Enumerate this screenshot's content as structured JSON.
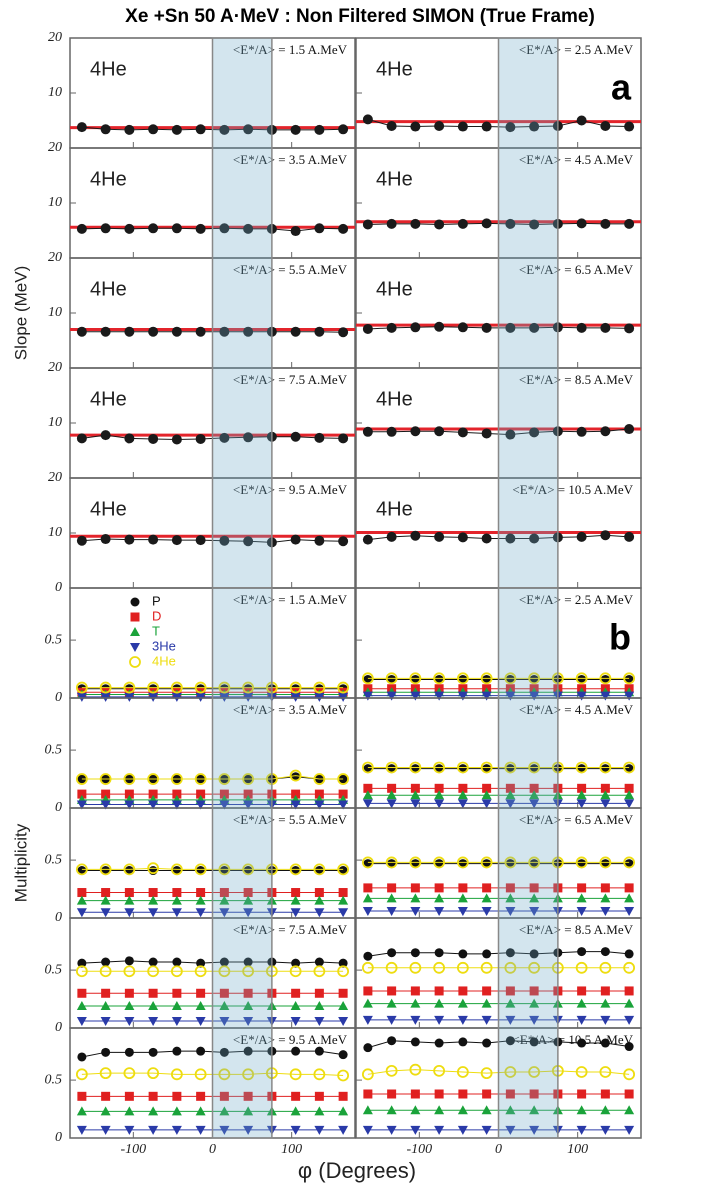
{
  "title": "Xe +Sn 50 A·MeV : Non Filtered SIMON (True Frame)",
  "xlabel": "φ (Degrees)",
  "chart_data": [
    {
      "type": "line",
      "label": "a",
      "ylabel": "Slope (MeV)",
      "x": [
        -165,
        -135,
        -105,
        -75,
        -45,
        -15,
        15,
        45,
        75,
        105,
        135,
        165
      ],
      "xlim": [
        -180,
        180
      ],
      "xticks": [
        -100,
        0,
        100
      ],
      "ylim": [
        0,
        20
      ],
      "yticks": [
        0,
        10,
        20
      ],
      "shade": [
        0,
        75
      ],
      "color": "#1a1a1a",
      "fit_color": "#e3242b",
      "panels": [
        {
          "annotation": "<E*/A> = 1.5 A.MeV",
          "name": "4He",
          "values": [
            3.8,
            3.4,
            3.3,
            3.4,
            3.3,
            3.4,
            3.3,
            3.4,
            3.3,
            3.3,
            3.3,
            3.4
          ],
          "fit": 3.7
        },
        {
          "annotation": "<E*/A> = 2.5 A.MeV",
          "name": "4He",
          "values": [
            5.2,
            4.0,
            3.9,
            4.0,
            3.9,
            3.9,
            3.8,
            3.9,
            4.0,
            5.0,
            4.0,
            3.9
          ],
          "fit": 4.8
        },
        {
          "annotation": "<E*/A> = 3.5 A.MeV",
          "name": "4He",
          "values": [
            5.3,
            5.4,
            5.3,
            5.4,
            5.4,
            5.3,
            5.4,
            5.3,
            5.3,
            4.9,
            5.4,
            5.3
          ],
          "fit": 5.6
        },
        {
          "annotation": "<E*/A> = 4.5 A.MeV",
          "name": "4He",
          "values": [
            6.1,
            6.2,
            6.2,
            6.1,
            6.2,
            6.3,
            6.2,
            6.1,
            6.2,
            6.3,
            6.2,
            6.2
          ],
          "fit": 6.6
        },
        {
          "annotation": "<E*/A> = 5.5 A.MeV",
          "name": "4He",
          "values": [
            6.6,
            6.6,
            6.6,
            6.6,
            6.6,
            6.6,
            6.6,
            6.6,
            6.6,
            6.6,
            6.6,
            6.5
          ],
          "fit": 7.0
        },
        {
          "annotation": "<E*/A> = 6.5 A.MeV",
          "name": "4He",
          "values": [
            7.1,
            7.3,
            7.4,
            7.5,
            7.4,
            7.3,
            7.3,
            7.3,
            7.4,
            7.3,
            7.3,
            7.2
          ],
          "fit": 7.8
        },
        {
          "annotation": "<E*/A> = 7.5 A.MeV",
          "name": "4He",
          "values": [
            7.2,
            7.8,
            7.2,
            7.1,
            7.0,
            7.1,
            7.3,
            7.4,
            7.5,
            7.5,
            7.3,
            7.2
          ],
          "fit": 7.8
        },
        {
          "annotation": "<E*/A> = 8.5 A.MeV",
          "name": "4He",
          "values": [
            8.4,
            8.4,
            8.5,
            8.5,
            8.3,
            8.1,
            7.9,
            8.3,
            8.5,
            8.4,
            8.5,
            8.9
          ],
          "fit": 8.9
        },
        {
          "annotation": "<E*/A> = 9.5 A.MeV",
          "name": "4He",
          "values": [
            8.6,
            8.9,
            8.8,
            8.8,
            8.7,
            8.7,
            8.6,
            8.5,
            8.3,
            8.8,
            8.6,
            8.5
          ],
          "fit": 9.4
        },
        {
          "annotation": "<E*/A> = 10.5 A.MeV",
          "name": "4He",
          "values": [
            8.8,
            9.3,
            9.5,
            9.3,
            9.2,
            9.0,
            9.0,
            9.0,
            9.2,
            9.3,
            9.6,
            9.3
          ],
          "fit": 10.1
        }
      ]
    },
    {
      "type": "line",
      "label": "b",
      "ylabel": "Multiplicity",
      "x": [
        -165,
        -135,
        -105,
        -75,
        -45,
        -15,
        15,
        45,
        75,
        105,
        135,
        165
      ],
      "xlim": [
        -180,
        180
      ],
      "xticks": [
        -100,
        0,
        100
      ],
      "ylim": [
        0,
        0.95
      ],
      "yticks": [
        0,
        0.5
      ],
      "shade": [
        0,
        75
      ],
      "series": [
        {
          "name": "P",
          "color": "#111111",
          "marker": "circle"
        },
        {
          "name": "D",
          "color": "#e02020",
          "marker": "square"
        },
        {
          "name": "T",
          "color": "#1aa33a",
          "marker": "triangle-up"
        },
        {
          "name": "3He",
          "color": "#2a3aa8",
          "marker": "triangle-down"
        },
        {
          "name": "4He",
          "color": "#eedd10",
          "marker": "open-circle"
        }
      ],
      "panels": [
        {
          "annotation": "<E*/A> = 1.5 A.MeV",
          "values": [
            [
              0.08,
              0.08,
              0.08,
              0.08,
              0.08,
              0.08,
              0.08,
              0.08,
              0.08,
              0.08,
              0.08,
              0.08
            ],
            [
              0.05,
              0.05,
              0.05,
              0.05,
              0.05,
              0.05,
              0.05,
              0.05,
              0.05,
              0.05,
              0.05,
              0.05
            ],
            [
              0.03,
              0.03,
              0.03,
              0.03,
              0.03,
              0.03,
              0.03,
              0.03,
              0.03,
              0.03,
              0.03,
              0.03
            ],
            [
              0.01,
              0.01,
              0.01,
              0.01,
              0.01,
              0.01,
              0.01,
              0.01,
              0.01,
              0.01,
              0.01,
              0.01
            ],
            [
              0.09,
              0.09,
              0.09,
              0.09,
              0.09,
              0.09,
              0.09,
              0.09,
              0.09,
              0.09,
              0.09,
              0.09
            ]
          ]
        },
        {
          "annotation": "<E*/A> = 2.5 A.MeV",
          "values": [
            [
              0.16,
              0.16,
              0.16,
              0.16,
              0.16,
              0.16,
              0.16,
              0.16,
              0.16,
              0.16,
              0.16,
              0.16
            ],
            [
              0.08,
              0.08,
              0.08,
              0.08,
              0.08,
              0.08,
              0.08,
              0.08,
              0.08,
              0.08,
              0.08,
              0.08
            ],
            [
              0.05,
              0.05,
              0.05,
              0.05,
              0.05,
              0.05,
              0.05,
              0.05,
              0.05,
              0.05,
              0.05,
              0.05
            ],
            [
              0.02,
              0.02,
              0.02,
              0.02,
              0.02,
              0.02,
              0.02,
              0.02,
              0.02,
              0.02,
              0.02,
              0.02
            ],
            [
              0.17,
              0.17,
              0.17,
              0.17,
              0.17,
              0.17,
              0.17,
              0.17,
              0.17,
              0.17,
              0.17,
              0.17
            ]
          ]
        },
        {
          "annotation": "<E*/A> = 3.5 A.MeV",
          "values": [
            [
              0.25,
              0.25,
              0.25,
              0.25,
              0.25,
              0.25,
              0.25,
              0.25,
              0.25,
              0.27,
              0.25,
              0.25
            ],
            [
              0.12,
              0.12,
              0.12,
              0.12,
              0.12,
              0.12,
              0.12,
              0.12,
              0.12,
              0.12,
              0.12,
              0.12
            ],
            [
              0.07,
              0.07,
              0.07,
              0.07,
              0.07,
              0.07,
              0.07,
              0.07,
              0.07,
              0.07,
              0.07,
              0.07
            ],
            [
              0.03,
              0.03,
              0.03,
              0.03,
              0.03,
              0.03,
              0.03,
              0.03,
              0.03,
              0.03,
              0.03,
              0.03
            ],
            [
              0.25,
              0.25,
              0.25,
              0.25,
              0.25,
              0.25,
              0.25,
              0.25,
              0.25,
              0.28,
              0.25,
              0.25
            ]
          ]
        },
        {
          "annotation": "<E*/A> = 4.5 A.MeV",
          "values": [
            [
              0.34,
              0.34,
              0.34,
              0.34,
              0.34,
              0.34,
              0.34,
              0.34,
              0.34,
              0.34,
              0.34,
              0.34
            ],
            [
              0.17,
              0.17,
              0.17,
              0.17,
              0.17,
              0.17,
              0.17,
              0.17,
              0.17,
              0.17,
              0.17,
              0.17
            ],
            [
              0.11,
              0.11,
              0.11,
              0.11,
              0.11,
              0.11,
              0.11,
              0.11,
              0.11,
              0.11,
              0.11,
              0.11
            ],
            [
              0.04,
              0.04,
              0.04,
              0.04,
              0.04,
              0.04,
              0.04,
              0.04,
              0.04,
              0.04,
              0.04,
              0.04
            ],
            [
              0.35,
              0.35,
              0.35,
              0.35,
              0.35,
              0.35,
              0.35,
              0.35,
              0.35,
              0.35,
              0.35,
              0.35
            ]
          ]
        },
        {
          "annotation": "<E*/A> = 5.5 A.MeV",
          "values": [
            [
              0.41,
              0.41,
              0.41,
              0.41,
              0.41,
              0.41,
              0.41,
              0.41,
              0.41,
              0.41,
              0.41,
              0.41
            ],
            [
              0.22,
              0.22,
              0.22,
              0.22,
              0.22,
              0.22,
              0.22,
              0.22,
              0.22,
              0.22,
              0.22,
              0.22
            ],
            [
              0.15,
              0.15,
              0.15,
              0.15,
              0.15,
              0.15,
              0.15,
              0.15,
              0.15,
              0.15,
              0.15,
              0.15
            ],
            [
              0.05,
              0.05,
              0.05,
              0.05,
              0.05,
              0.05,
              0.05,
              0.05,
              0.05,
              0.05,
              0.05,
              0.05
            ],
            [
              0.42,
              0.42,
              0.42,
              0.43,
              0.42,
              0.42,
              0.42,
              0.42,
              0.42,
              0.42,
              0.42,
              0.42
            ]
          ]
        },
        {
          "annotation": "<E*/A> = 6.5 A.MeV",
          "values": [
            [
              0.47,
              0.47,
              0.47,
              0.47,
              0.47,
              0.47,
              0.47,
              0.47,
              0.47,
              0.47,
              0.47,
              0.47
            ],
            [
              0.26,
              0.26,
              0.26,
              0.26,
              0.26,
              0.26,
              0.26,
              0.26,
              0.26,
              0.26,
              0.26,
              0.26
            ],
            [
              0.17,
              0.17,
              0.17,
              0.17,
              0.17,
              0.17,
              0.17,
              0.17,
              0.17,
              0.17,
              0.17,
              0.17
            ],
            [
              0.06,
              0.06,
              0.06,
              0.06,
              0.06,
              0.06,
              0.06,
              0.06,
              0.06,
              0.06,
              0.06,
              0.06
            ],
            [
              0.48,
              0.48,
              0.48,
              0.48,
              0.48,
              0.48,
              0.48,
              0.48,
              0.48,
              0.48,
              0.48,
              0.48
            ]
          ]
        },
        {
          "annotation": "<E*/A> = 7.5 A.MeV",
          "values": [
            [
              0.56,
              0.57,
              0.58,
              0.57,
              0.57,
              0.56,
              0.57,
              0.57,
              0.57,
              0.56,
              0.57,
              0.56
            ],
            [
              0.3,
              0.3,
              0.3,
              0.3,
              0.3,
              0.3,
              0.3,
              0.3,
              0.3,
              0.3,
              0.3,
              0.3
            ],
            [
              0.19,
              0.19,
              0.19,
              0.19,
              0.19,
              0.19,
              0.19,
              0.19,
              0.19,
              0.19,
              0.19,
              0.19
            ],
            [
              0.06,
              0.06,
              0.06,
              0.06,
              0.06,
              0.06,
              0.06,
              0.06,
              0.06,
              0.06,
              0.06,
              0.06
            ],
            [
              0.49,
              0.49,
              0.49,
              0.49,
              0.49,
              0.49,
              0.49,
              0.49,
              0.49,
              0.49,
              0.49,
              0.49
            ]
          ]
        },
        {
          "annotation": "<E*/A> = 8.5 A.MeV",
          "values": [
            [
              0.62,
              0.65,
              0.65,
              0.65,
              0.64,
              0.64,
              0.65,
              0.64,
              0.65,
              0.66,
              0.66,
              0.64
            ],
            [
              0.32,
              0.32,
              0.32,
              0.32,
              0.32,
              0.32,
              0.32,
              0.32,
              0.32,
              0.32,
              0.32,
              0.32
            ],
            [
              0.21,
              0.21,
              0.21,
              0.21,
              0.21,
              0.21,
              0.21,
              0.21,
              0.21,
              0.21,
              0.21,
              0.21
            ],
            [
              0.07,
              0.07,
              0.07,
              0.07,
              0.07,
              0.07,
              0.07,
              0.07,
              0.07,
              0.07,
              0.07,
              0.07
            ],
            [
              0.52,
              0.52,
              0.52,
              0.52,
              0.52,
              0.52,
              0.52,
              0.52,
              0.52,
              0.52,
              0.52,
              0.52
            ]
          ]
        },
        {
          "annotation": "<E*/A> = 9.5 A.MeV",
          "values": [
            [
              0.7,
              0.74,
              0.74,
              0.74,
              0.75,
              0.75,
              0.74,
              0.75,
              0.75,
              0.75,
              0.75,
              0.72
            ],
            [
              0.36,
              0.36,
              0.36,
              0.36,
              0.36,
              0.36,
              0.36,
              0.36,
              0.36,
              0.36,
              0.36,
              0.36
            ],
            [
              0.23,
              0.23,
              0.23,
              0.23,
              0.23,
              0.23,
              0.23,
              0.23,
              0.23,
              0.23,
              0.23,
              0.23
            ],
            [
              0.07,
              0.07,
              0.07,
              0.07,
              0.07,
              0.07,
              0.07,
              0.07,
              0.07,
              0.07,
              0.07,
              0.07
            ],
            [
              0.55,
              0.56,
              0.56,
              0.56,
              0.55,
              0.55,
              0.55,
              0.55,
              0.56,
              0.55,
              0.55,
              0.54
            ]
          ]
        },
        {
          "annotation": "<E*/A> = 10.5 A.MeV",
          "values": [
            [
              0.78,
              0.84,
              0.83,
              0.82,
              0.83,
              0.82,
              0.84,
              0.83,
              0.83,
              0.82,
              0.82,
              0.79
            ],
            [
              0.38,
              0.38,
              0.38,
              0.38,
              0.38,
              0.38,
              0.38,
              0.38,
              0.38,
              0.38,
              0.38,
              0.38
            ],
            [
              0.24,
              0.24,
              0.24,
              0.24,
              0.24,
              0.24,
              0.24,
              0.24,
              0.24,
              0.24,
              0.24,
              0.24
            ],
            [
              0.07,
              0.07,
              0.07,
              0.07,
              0.07,
              0.07,
              0.07,
              0.07,
              0.07,
              0.07,
              0.07,
              0.07
            ],
            [
              0.55,
              0.58,
              0.59,
              0.58,
              0.57,
              0.56,
              0.57,
              0.57,
              0.58,
              0.57,
              0.57,
              0.55
            ]
          ]
        }
      ]
    }
  ]
}
